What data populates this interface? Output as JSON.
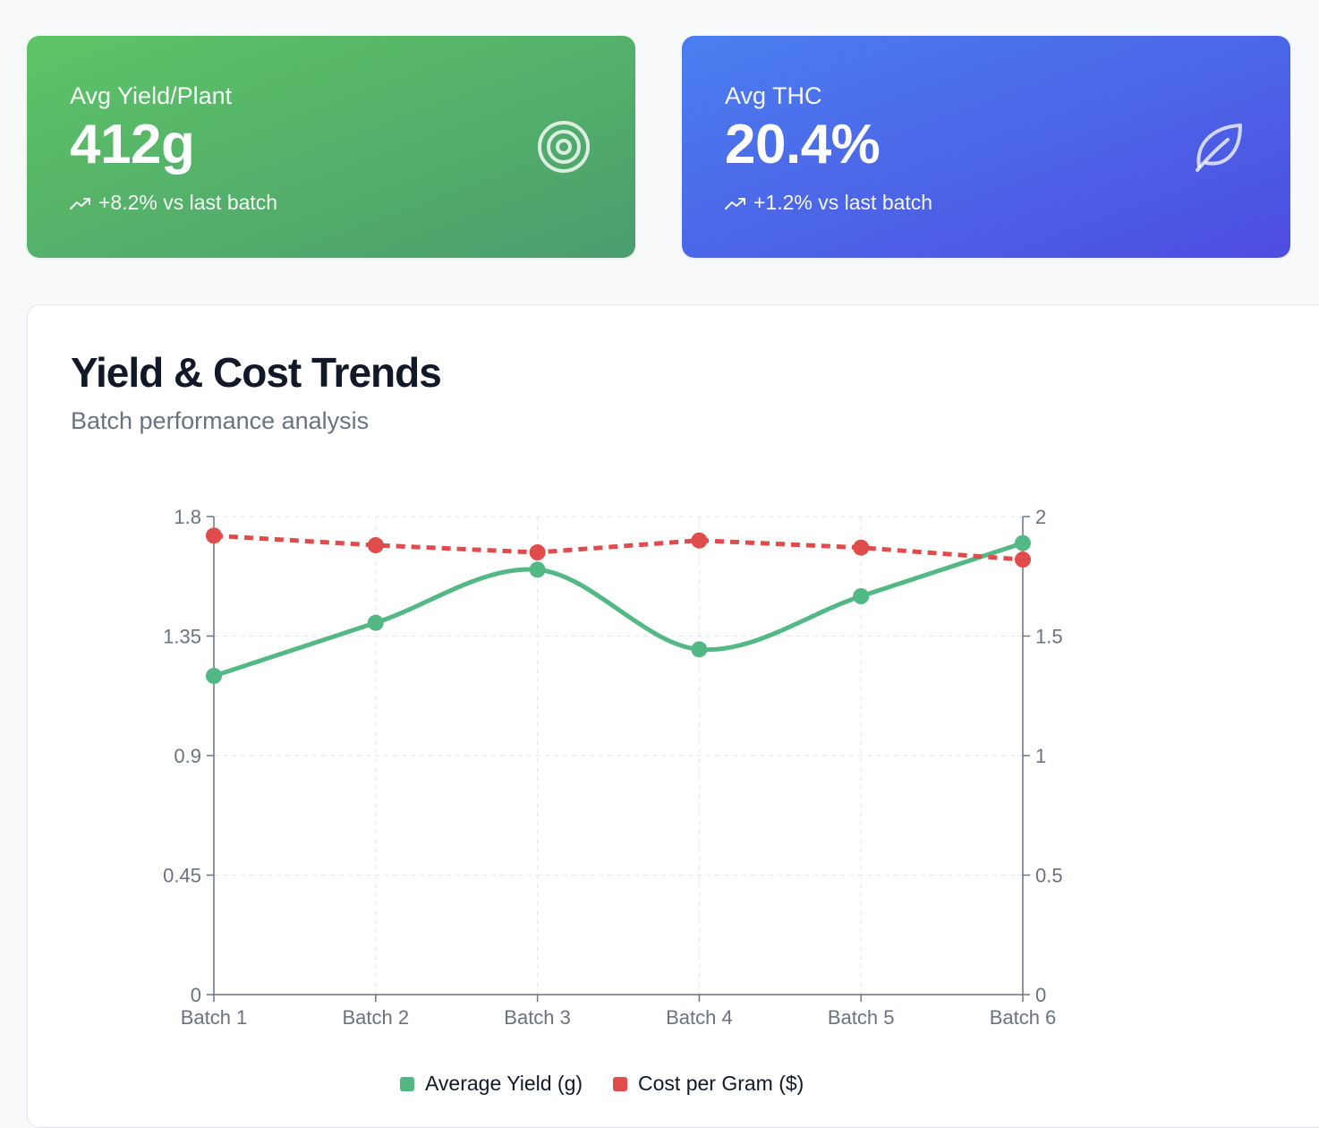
{
  "cards": [
    {
      "label": "Avg Yield/Plant",
      "value": "412g",
      "change": "+8.2% vs last batch",
      "icon": "target-icon"
    },
    {
      "label": "Avg THC",
      "value": "20.4%",
      "change": "+1.2% vs last batch",
      "icon": "leaf-icon"
    }
  ],
  "colors": {
    "green": "#52b884",
    "red": "#e04b4b",
    "axis": "#6b7280",
    "grid": "#e5e7eb"
  },
  "chart_data": {
    "type": "line",
    "title": "Yield & Cost Trends",
    "subtitle": "Batch performance analysis",
    "categories": [
      "Batch 1",
      "Batch 2",
      "Batch 3",
      "Batch 4",
      "Batch 5",
      "Batch 6"
    ],
    "y_left": {
      "ticks": [
        "0",
        "0.45",
        "0.9",
        "1.35",
        "1.8"
      ],
      "range": [
        0,
        1.8
      ]
    },
    "y_right": {
      "ticks": [
        "0",
        "0.5",
        "1",
        "1.5",
        "2"
      ],
      "range": [
        0,
        2
      ]
    },
    "series": [
      {
        "name": "Average Yield (g)",
        "axis": "left",
        "style": "solid-smooth",
        "values": [
          1.2,
          1.4,
          1.6,
          1.3,
          1.5,
          1.7
        ]
      },
      {
        "name": "Cost per Gram ($)",
        "axis": "right",
        "style": "dashed",
        "values": [
          1.92,
          1.88,
          1.85,
          1.9,
          1.87,
          1.82
        ]
      }
    ],
    "grid": true,
    "legend": "bottom-center"
  }
}
